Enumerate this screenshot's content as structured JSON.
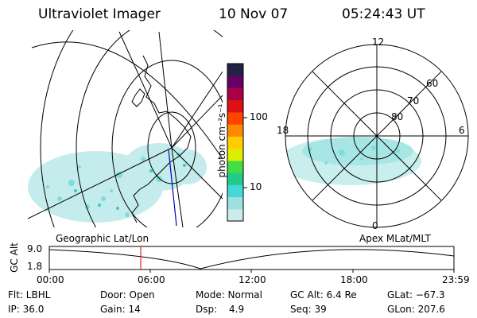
{
  "header": {
    "instrument": "Ultraviolet Imager",
    "date": "10 Nov 07",
    "time": "05:24:43 UT"
  },
  "left_panel": {
    "label": "Geographic Lat/Lon"
  },
  "right_panel": {
    "label": "Apex MLat/MLT",
    "mlt_labels": [
      "12",
      "18",
      "6",
      "0"
    ],
    "lat_labels": [
      "60",
      "70",
      "80"
    ]
  },
  "colorbar": {
    "unit_label": "photon cm⁻²s⁻¹",
    "ticks": [
      "100",
      "10"
    ],
    "colors": [
      "#ccecec",
      "#9ee0e0",
      "#44d8d8",
      "#22cc88",
      "#44dd44",
      "#ddee00",
      "#ffcc00",
      "#ff8800",
      "#ff4400",
      "#dd1111",
      "#aa0044",
      "#660066",
      "#222244"
    ]
  },
  "timeline": {
    "axis_label": "GC Alt",
    "y_top": "9.0",
    "y_bottom": "1.8",
    "x_ticks": [
      "00:00",
      "06:00",
      "12:00",
      "18:00",
      "23:59"
    ],
    "current_time_fraction": 0.226
  },
  "info": {
    "flt": "Flt: LBHL",
    "door": "Door: Open",
    "mode": "Mode: Normal",
    "gc_alt": "GC Alt: 6.4 Re",
    "glat": "GLat: −67.3",
    "ip": "IP: 36.0",
    "gain": "Gain: 14",
    "dsp_label": "Dsp:",
    "dsp_value": "4.9",
    "seq": "Seq: 39",
    "glon": "GLon: 207.6"
  }
}
